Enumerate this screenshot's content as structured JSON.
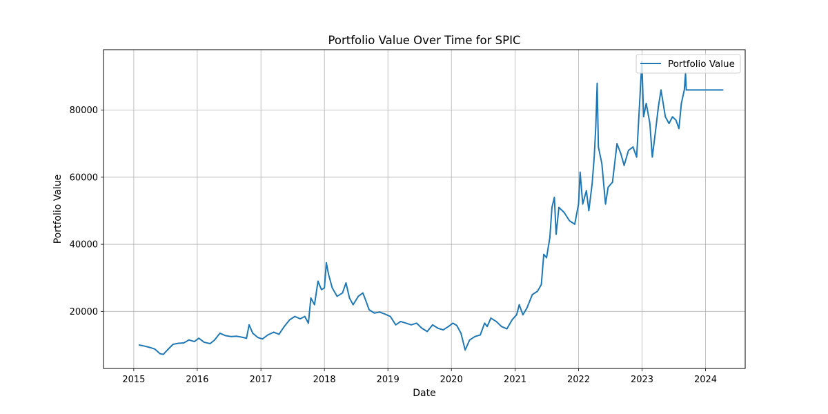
{
  "chart_data": {
    "type": "line",
    "title": "Portfolio Value Over Time for SPIC",
    "xlabel": "Date",
    "ylabel": "Portfolio Value",
    "x_ticks": [
      "2015",
      "2016",
      "2017",
      "2018",
      "2019",
      "2020",
      "2021",
      "2022",
      "2023",
      "2024"
    ],
    "y_ticks": [
      "20000",
      "40000",
      "60000",
      "80000"
    ],
    "xlim": [
      "2014-07-11",
      "2024-08-16"
    ],
    "ylim": [
      3000,
      98000
    ],
    "grid": true,
    "legend_position": "top-right",
    "series": [
      {
        "name": "Portfolio Value",
        "color": "#1f77b4",
        "points": [
          [
            "2015-02-01",
            10000
          ],
          [
            "2015-03-01",
            9700
          ],
          [
            "2015-04-01",
            9300
          ],
          [
            "2015-05-01",
            8800
          ],
          [
            "2015-06-01",
            7400
          ],
          [
            "2015-06-20",
            7200
          ],
          [
            "2015-07-15",
            8600
          ],
          [
            "2015-08-15",
            10200
          ],
          [
            "2015-09-15",
            10500
          ],
          [
            "2015-10-15",
            10600
          ],
          [
            "2015-11-15",
            11500
          ],
          [
            "2015-12-15",
            11000
          ],
          [
            "2016-01-10",
            12000
          ],
          [
            "2016-02-10",
            10800
          ],
          [
            "2016-03-15",
            10400
          ],
          [
            "2016-04-10",
            11500
          ],
          [
            "2016-05-10",
            13500
          ],
          [
            "2016-06-10",
            12800
          ],
          [
            "2016-07-15",
            12500
          ],
          [
            "2016-08-15",
            12600
          ],
          [
            "2016-09-15",
            12300
          ],
          [
            "2016-10-10",
            12000
          ],
          [
            "2016-10-25",
            16000
          ],
          [
            "2016-11-15",
            13500
          ],
          [
            "2016-12-15",
            12200
          ],
          [
            "2017-01-10",
            11800
          ],
          [
            "2017-02-10",
            13000
          ],
          [
            "2017-03-15",
            13800
          ],
          [
            "2017-04-15",
            13200
          ],
          [
            "2017-05-15",
            15500
          ],
          [
            "2017-06-15",
            17500
          ],
          [
            "2017-07-15",
            18500
          ],
          [
            "2017-08-15",
            17800
          ],
          [
            "2017-09-10",
            18500
          ],
          [
            "2017-10-01",
            16500
          ],
          [
            "2017-10-15",
            24000
          ],
          [
            "2017-11-05",
            22000
          ],
          [
            "2017-11-25",
            29000
          ],
          [
            "2017-12-15",
            26500
          ],
          [
            "2018-01-01",
            27000
          ],
          [
            "2018-01-12",
            34500
          ],
          [
            "2018-01-25",
            31000
          ],
          [
            "2018-02-15",
            27000
          ],
          [
            "2018-03-15",
            24500
          ],
          [
            "2018-04-15",
            25500
          ],
          [
            "2018-05-05",
            28500
          ],
          [
            "2018-05-25",
            24000
          ],
          [
            "2018-06-15",
            22000
          ],
          [
            "2018-07-15",
            24500
          ],
          [
            "2018-08-10",
            25500
          ],
          [
            "2018-08-25",
            23500
          ],
          [
            "2018-09-15",
            20500
          ],
          [
            "2018-10-15",
            19500
          ],
          [
            "2018-11-15",
            19800
          ],
          [
            "2018-12-15",
            19200
          ],
          [
            "2019-01-15",
            18500
          ],
          [
            "2019-02-15",
            16000
          ],
          [
            "2019-03-15",
            17000
          ],
          [
            "2019-04-15",
            16500
          ],
          [
            "2019-05-15",
            16000
          ],
          [
            "2019-06-15",
            16500
          ],
          [
            "2019-07-15",
            15000
          ],
          [
            "2019-08-15",
            14000
          ],
          [
            "2019-09-15",
            16000
          ],
          [
            "2019-10-15",
            15000
          ],
          [
            "2019-11-15",
            14500
          ],
          [
            "2019-12-15",
            15500
          ],
          [
            "2020-01-10",
            16500
          ],
          [
            "2020-02-01",
            15800
          ],
          [
            "2020-02-25",
            13500
          ],
          [
            "2020-03-20",
            8500
          ],
          [
            "2020-04-15",
            11500
          ],
          [
            "2020-05-15",
            12500
          ],
          [
            "2020-06-15",
            13000
          ],
          [
            "2020-07-10",
            16500
          ],
          [
            "2020-07-25",
            15500
          ],
          [
            "2020-08-15",
            18000
          ],
          [
            "2020-09-15",
            17000
          ],
          [
            "2020-10-15",
            15500
          ],
          [
            "2020-11-15",
            14800
          ],
          [
            "2020-12-15",
            17500
          ],
          [
            "2021-01-10",
            19000
          ],
          [
            "2021-01-25",
            22000
          ],
          [
            "2021-02-15",
            19000
          ],
          [
            "2021-03-10",
            21000
          ],
          [
            "2021-04-10",
            25000
          ],
          [
            "2021-05-10",
            26000
          ],
          [
            "2021-06-01",
            28000
          ],
          [
            "2021-06-15",
            37000
          ],
          [
            "2021-07-01",
            36000
          ],
          [
            "2021-07-20",
            42000
          ],
          [
            "2021-08-01",
            51000
          ],
          [
            "2021-08-15",
            54000
          ],
          [
            "2021-08-25",
            43000
          ],
          [
            "2021-09-10",
            51000
          ],
          [
            "2021-10-10",
            49500
          ],
          [
            "2021-11-10",
            47000
          ],
          [
            "2021-12-10",
            46000
          ],
          [
            "2022-01-01",
            52000
          ],
          [
            "2022-01-10",
            61500
          ],
          [
            "2022-01-25",
            52000
          ],
          [
            "2022-02-15",
            56000
          ],
          [
            "2022-03-01",
            50000
          ],
          [
            "2022-03-20",
            58000
          ],
          [
            "2022-04-01",
            66000
          ],
          [
            "2022-04-10",
            75000
          ],
          [
            "2022-04-18",
            88000
          ],
          [
            "2022-04-25",
            69000
          ],
          [
            "2022-05-15",
            64000
          ],
          [
            "2022-06-05",
            52000
          ],
          [
            "2022-06-20",
            57000
          ],
          [
            "2022-07-15",
            58500
          ],
          [
            "2022-08-10",
            70000
          ],
          [
            "2022-09-01",
            67000
          ],
          [
            "2022-09-20",
            63500
          ],
          [
            "2022-10-15",
            68000
          ],
          [
            "2022-11-10",
            69000
          ],
          [
            "2022-12-01",
            66000
          ],
          [
            "2022-12-20",
            84000
          ],
          [
            "2022-12-31",
            94500
          ],
          [
            "2023-01-10",
            78000
          ],
          [
            "2023-01-25",
            82000
          ],
          [
            "2023-02-15",
            76000
          ],
          [
            "2023-03-01",
            66000
          ],
          [
            "2023-03-20",
            74000
          ],
          [
            "2023-04-05",
            81000
          ],
          [
            "2023-04-20",
            86000
          ],
          [
            "2023-05-15",
            78000
          ],
          [
            "2023-06-05",
            76000
          ],
          [
            "2023-06-25",
            78000
          ],
          [
            "2023-07-15",
            77000
          ],
          [
            "2023-08-01",
            74500
          ],
          [
            "2023-08-15",
            82000
          ],
          [
            "2023-09-01",
            86000
          ],
          [
            "2023-09-08",
            91000
          ],
          [
            "2023-09-12",
            86000
          ],
          [
            "2024-04-10",
            86000
          ]
        ]
      }
    ]
  }
}
